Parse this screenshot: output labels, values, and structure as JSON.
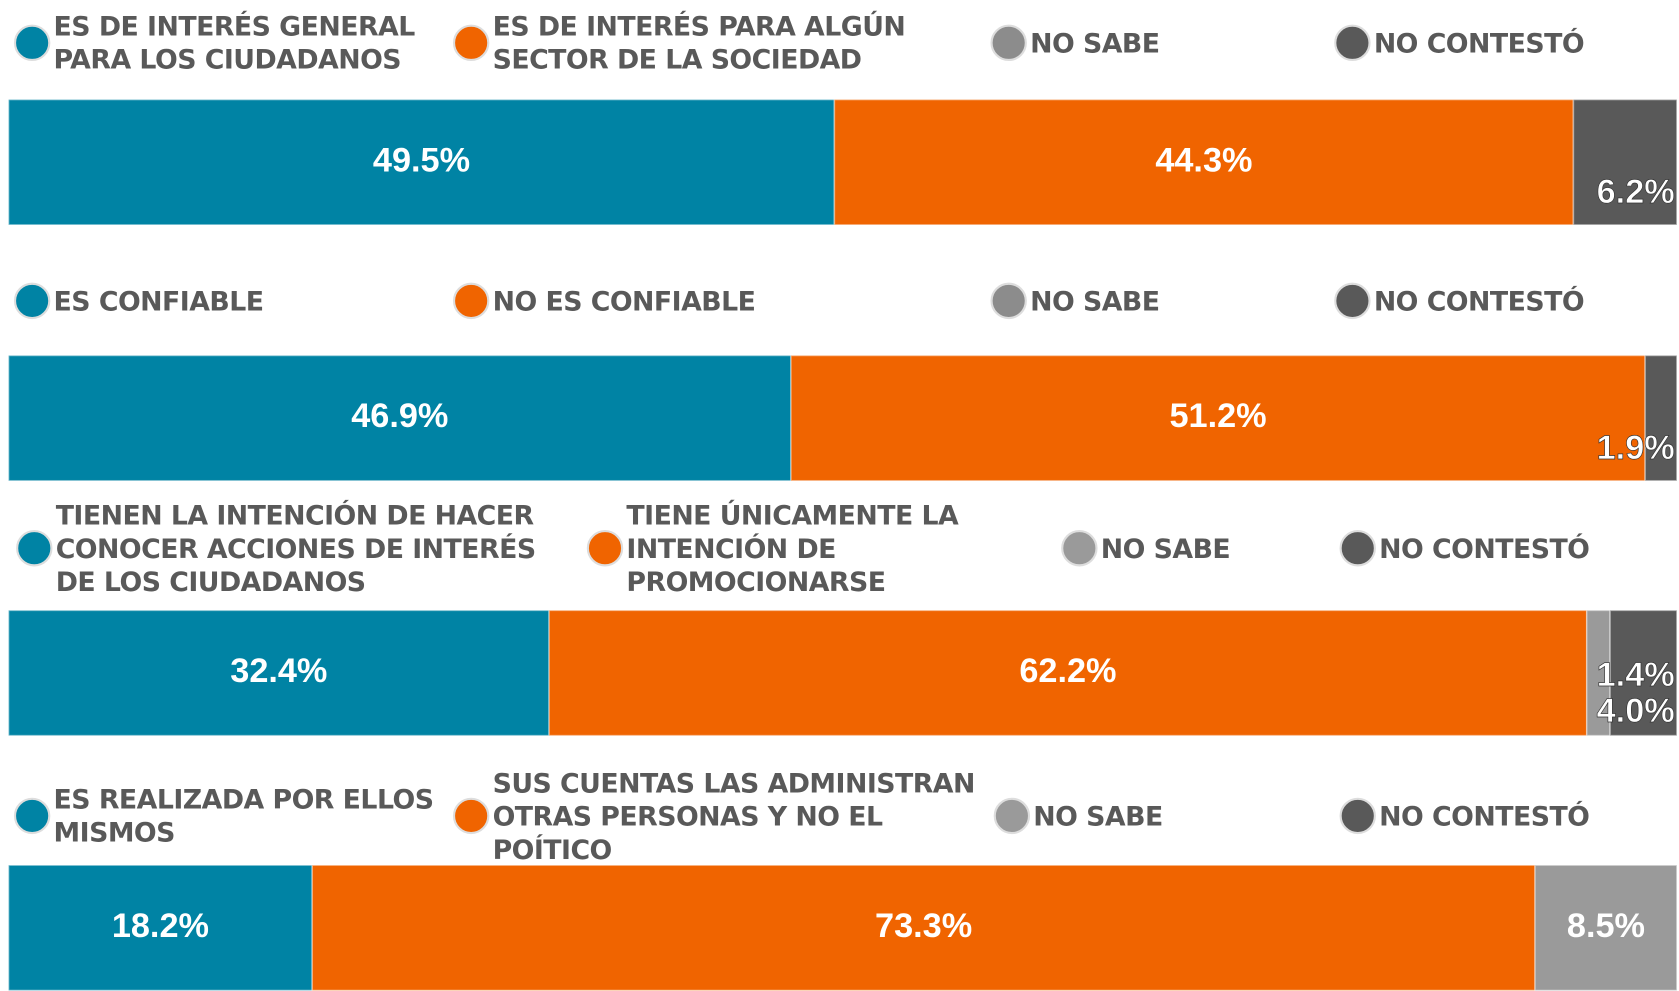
{
  "chart_data": [
    {
      "type": "bar",
      "orientation": "horizontal",
      "stacked": true,
      "xlim": [
        0,
        100
      ],
      "series": [
        {
          "name": "ES DE INTERÉS GENERAL PARA  LOS CIUDADANOS",
          "color": "#0083a4",
          "values": [
            49.5
          ],
          "value_labels": [
            "49.5%"
          ]
        },
        {
          "name": "ES DE  INTERÉS PARA ALGÚN SECTOR DE LA SOCIEDAD",
          "color": "#f06400",
          "values": [
            44.3
          ],
          "value_labels": [
            "44.3%"
          ]
        },
        {
          "name": "NO SABE",
          "color": "#8c8c8c",
          "values": [
            0
          ]
        },
        {
          "name": "NO CONTESTÓ",
          "color": "#595959",
          "values": [
            6.2
          ],
          "value_labels": [
            "6.2%"
          ]
        }
      ]
    },
    {
      "type": "bar",
      "orientation": "horizontal",
      "stacked": true,
      "xlim": [
        0,
        100
      ],
      "series": [
        {
          "name": "ES CONFIABLE",
          "color": "#0083a4",
          "values": [
            46.9
          ],
          "value_labels": [
            "46.9%"
          ]
        },
        {
          "name": "NO ES CONFIABLE",
          "color": "#f06400",
          "values": [
            51.2
          ],
          "value_labels": [
            "51.2%"
          ]
        },
        {
          "name": "NO SABE",
          "color": "#8c8c8c",
          "values": [
            0
          ]
        },
        {
          "name": "NO CONTESTÓ",
          "color": "#595959",
          "values": [
            1.9
          ],
          "value_labels": [
            "1.9%"
          ]
        }
      ]
    },
    {
      "type": "bar",
      "orientation": "horizontal",
      "stacked": true,
      "xlim": [
        0,
        100
      ],
      "series": [
        {
          "name": "TIENEN LA INTENCIÓN DE HACER CONOCER ACCIONES DE INTERÉS DE LOS CIUDADANOS",
          "color": "#0083a4",
          "values": [
            32.4
          ],
          "value_labels": [
            "32.4%"
          ]
        },
        {
          "name": "TIENE ÚNICAMENTE LA INTENCIÓN DE PROMOCIONARSE",
          "color": "#f06400",
          "values": [
            62.2
          ],
          "value_labels": [
            "62.2%"
          ]
        },
        {
          "name": "NO SABE",
          "color": "#9a9a9a",
          "values": [
            1.4
          ],
          "value_labels": [
            "1.4%"
          ]
        },
        {
          "name": "NO CONTESTÓ",
          "color": "#595959",
          "values": [
            4.0
          ],
          "value_labels": [
            "4.0%"
          ]
        }
      ]
    },
    {
      "type": "bar",
      "orientation": "horizontal",
      "stacked": true,
      "xlim": [
        0,
        100
      ],
      "series": [
        {
          "name": "ES REALIZADA POR ELLOS MISMOS",
          "color": "#0083a4",
          "values": [
            18.2
          ],
          "value_labels": [
            "18.2%"
          ]
        },
        {
          "name": "SUS CUENTAS LAS ADMINISTRAN OTRAS PERSONAS Y NO EL POÍTICO",
          "color": "#f06400",
          "values": [
            73.3
          ],
          "value_labels": [
            "73.3%"
          ]
        },
        {
          "name": "NO SABE",
          "color": "#9a9a9a",
          "values": [
            8.5
          ],
          "value_labels": [
            "8.5%"
          ]
        },
        {
          "name": "NO CONTESTÓ",
          "color": "#595959",
          "values": [
            0
          ]
        }
      ]
    }
  ]
}
